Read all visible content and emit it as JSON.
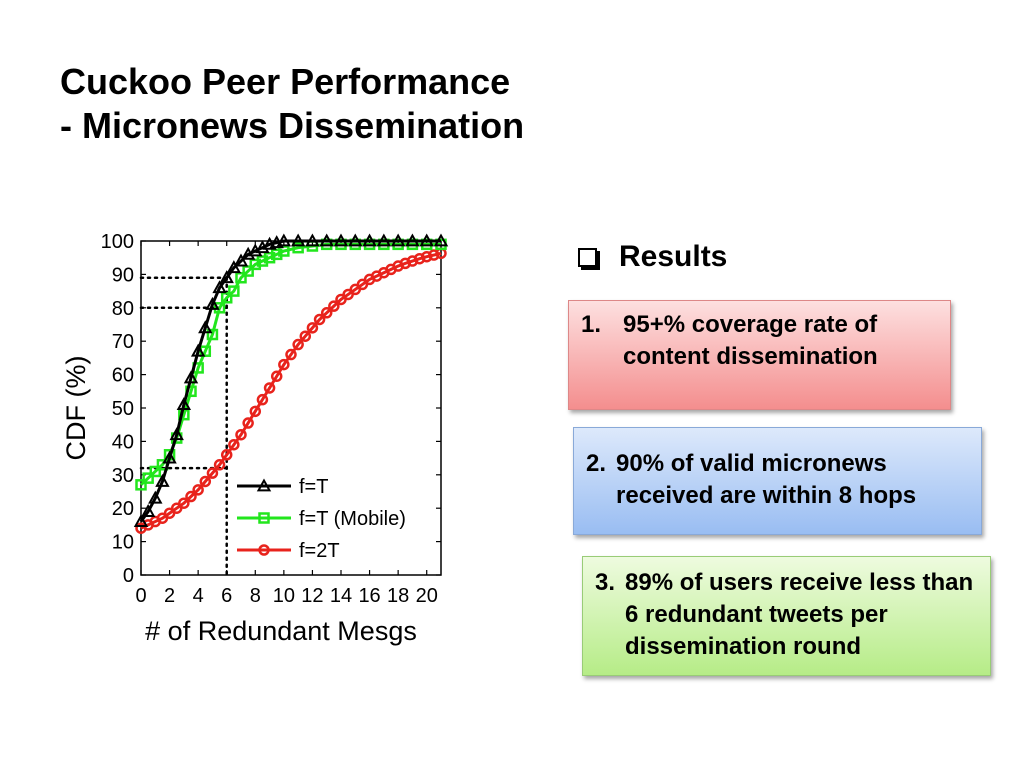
{
  "slide": {
    "title_line1": "Cuckoo Peer Performance",
    "title_line2": "- Micronews Dissemination"
  },
  "results": {
    "heading": "Results",
    "items": [
      {
        "num": "1.",
        "text": "95+% coverage rate of content dissemination",
        "color": "#f48e8e"
      },
      {
        "num": "2.",
        "text": "90% of valid micronews received are within 8 hops",
        "color": "#99bdf2"
      },
      {
        "num": "3.",
        "text": "89% of users receive less than 6 redundant tweets per dissemination round",
        "color": "#b6ec87"
      }
    ]
  },
  "chart_data": {
    "type": "line",
    "xlabel": "# of Redundant Mesgs",
    "ylabel": "CDF (%)",
    "xlim": [
      0,
      21
    ],
    "ylim": [
      0,
      100
    ],
    "xticks": [
      0,
      2,
      4,
      6,
      8,
      10,
      12,
      14,
      16,
      18,
      20
    ],
    "yticks": [
      0,
      10,
      20,
      30,
      40,
      50,
      60,
      70,
      80,
      90,
      100
    ],
    "legend_position": "bottom-right",
    "grid": false,
    "series": [
      {
        "name": "f=T",
        "color": "#000000",
        "marker": "triangle",
        "x": [
          0,
          0.5,
          1,
          1.5,
          2,
          2.5,
          3,
          3.5,
          4,
          4.5,
          5,
          5.5,
          6,
          6.5,
          7,
          7.5,
          8,
          8.5,
          9,
          9.5,
          10,
          11,
          12,
          13,
          14,
          15,
          16,
          17,
          18,
          19,
          20,
          21
        ],
        "y": [
          16,
          19,
          23,
          28,
          35,
          42,
          51,
          59,
          67,
          74,
          81,
          86,
          89,
          92,
          94,
          96,
          97,
          98,
          99,
          99.5,
          100,
          100,
          100,
          100,
          100,
          100,
          100,
          100,
          100,
          100,
          100,
          100
        ]
      },
      {
        "name": "f=T (Mobile)",
        "color": "#22e61d",
        "marker": "square",
        "x": [
          0,
          0.5,
          1,
          1.5,
          2,
          2.5,
          3,
          3.5,
          4,
          4.5,
          5,
          5.5,
          6,
          6.5,
          7,
          7.5,
          8,
          8.5,
          9,
          9.5,
          10,
          11,
          12,
          13,
          14,
          15,
          16,
          17,
          18,
          19,
          20,
          21
        ],
        "y": [
          27,
          29,
          31,
          33,
          36,
          41,
          48,
          55,
          62,
          67,
          72,
          80,
          83,
          85,
          89,
          91,
          93,
          94,
          95,
          96,
          97,
          98,
          98.5,
          99,
          99,
          99,
          99,
          99,
          99,
          99,
          99,
          99
        ]
      },
      {
        "name": "f=2T",
        "color": "#e8231c",
        "marker": "circle",
        "x": [
          0,
          0.5,
          1,
          1.5,
          2,
          2.5,
          3,
          3.5,
          4,
          4.5,
          5,
          5.5,
          6,
          6.5,
          7,
          7.5,
          8,
          8.5,
          9,
          9.5,
          10,
          10.5,
          11,
          11.5,
          12,
          12.5,
          13,
          13.5,
          14,
          14.5,
          15,
          15.5,
          16,
          16.5,
          17,
          17.5,
          18,
          18.5,
          19,
          19.5,
          20,
          20.5,
          21
        ],
        "y": [
          14,
          15,
          16,
          17,
          18.5,
          20,
          21.5,
          23.5,
          25.5,
          28,
          30.5,
          33,
          36,
          39,
          42,
          45.5,
          49,
          52.5,
          56,
          59.5,
          63,
          66,
          69,
          71.5,
          74,
          76.5,
          78.5,
          80.5,
          82.5,
          84,
          85.5,
          87,
          88.5,
          89.5,
          90.5,
          91.5,
          92.5,
          93.3,
          94,
          94.7,
          95.3,
          95.8,
          96.3
        ]
      }
    ],
    "annotations": [
      {
        "type": "guide",
        "x": 6,
        "y": 89
      },
      {
        "type": "guide",
        "x": 6,
        "y": 80
      },
      {
        "type": "guide",
        "x": 6,
        "y": 32
      }
    ]
  }
}
